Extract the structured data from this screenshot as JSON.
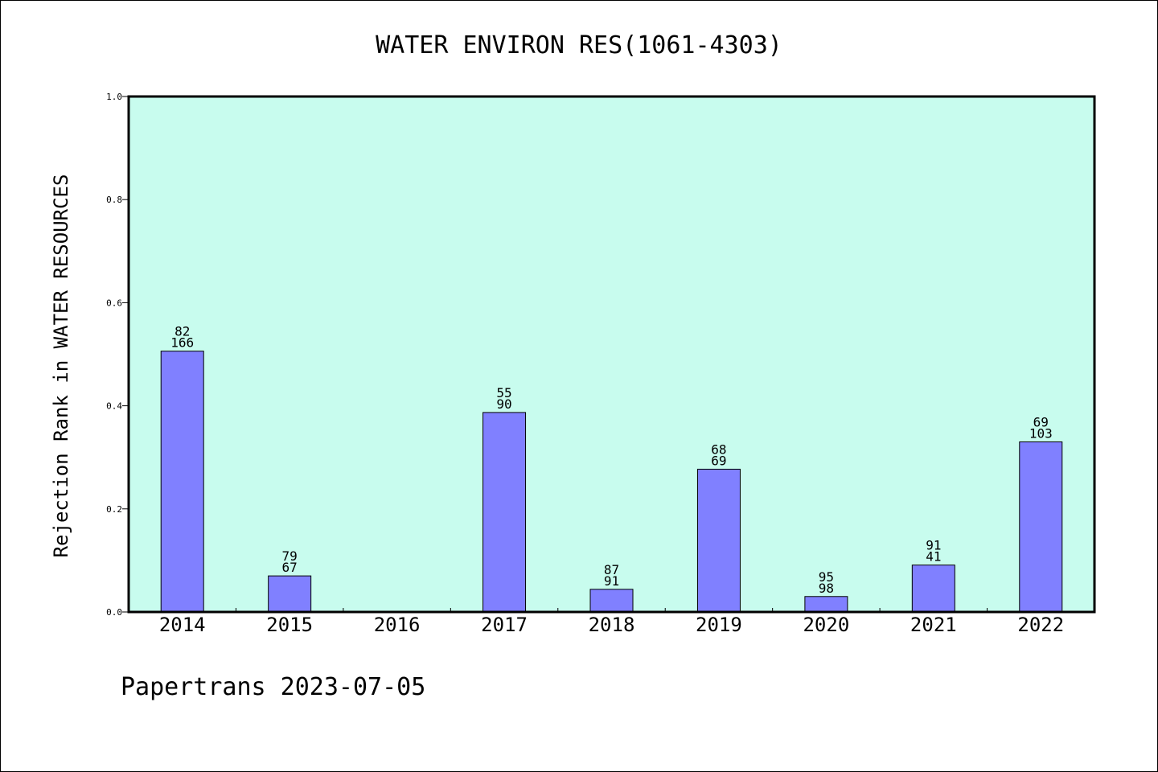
{
  "chart_data": {
    "type": "bar",
    "title": "WATER ENVIRON RES(1061-4303)",
    "xlabel": "",
    "ylabel": "Rejection Rank in WATER RESOURCES",
    "ylim": [
      0,
      1.0
    ],
    "yticks": [
      "0.0",
      "0.2",
      "0.4",
      "0.6",
      "0.8",
      "1.0"
    ],
    "grid": false,
    "colors": {
      "plot_bg": "#c8fcee",
      "bar": "#8080ff",
      "bar_edge": "#000000"
    },
    "categories": [
      "2014",
      "2015",
      "2016",
      "2017",
      "2018",
      "2019",
      "2020",
      "2021",
      "2022"
    ],
    "values": [
      0.506,
      0.07,
      null,
      0.387,
      0.044,
      0.277,
      0.03,
      0.091,
      0.33
    ],
    "labels_top": [
      "82",
      "79",
      "",
      "55",
      "87",
      "68",
      "95",
      "91",
      "69"
    ],
    "labels_bottom": [
      "166",
      "67",
      "",
      "90",
      "91",
      "69",
      "98",
      "41",
      "103"
    ]
  },
  "footer": "Papertrans 2023-07-05"
}
